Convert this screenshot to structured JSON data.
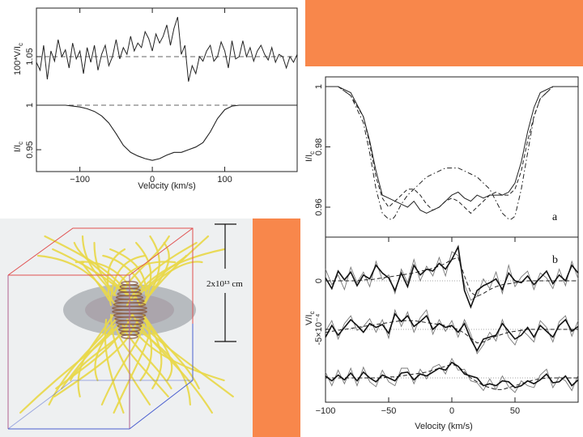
{
  "colors": {
    "accent": "#f8874b",
    "field_lines": "#e8d84a",
    "box_top": "#e05050",
    "box_bottom": "#4a5fd0",
    "disk": "#8a8f96"
  },
  "chart_data": [
    {
      "type": "line",
      "xlabel": "Velocity (km/s)",
      "xlim": [
        -160,
        200
      ],
      "xticks": [
        -100,
        0,
        100
      ],
      "upper": {
        "ylabel": "100*V/I_c",
        "ytick_labels": [
          "1.05"
        ],
        "baseline": 1.05,
        "x": [
          -160,
          -155,
          -150,
          -145,
          -140,
          -135,
          -130,
          -125,
          -120,
          -115,
          -110,
          -105,
          -100,
          -95,
          -90,
          -85,
          -80,
          -75,
          -70,
          -65,
          -60,
          -55,
          -50,
          -45,
          -40,
          -35,
          -30,
          -25,
          -20,
          -15,
          -10,
          -5,
          0,
          5,
          10,
          15,
          20,
          25,
          30,
          35,
          40,
          45,
          50,
          55,
          60,
          65,
          70,
          75,
          80,
          85,
          90,
          95,
          100,
          105,
          110,
          115,
          120,
          125,
          130,
          135,
          140,
          145,
          150,
          155,
          160,
          165,
          170,
          175,
          180,
          185,
          190,
          195,
          200
        ],
        "values": [
          1.045,
          1.038,
          1.06,
          1.03,
          1.055,
          1.046,
          1.065,
          1.05,
          1.056,
          1.04,
          1.062,
          1.048,
          1.055,
          1.035,
          1.058,
          1.045,
          1.06,
          1.038,
          1.052,
          1.06,
          1.042,
          1.05,
          1.065,
          1.048,
          1.058,
          1.052,
          1.068,
          1.055,
          1.062,
          1.058,
          1.072,
          1.066,
          1.055,
          1.07,
          1.062,
          1.068,
          1.078,
          1.06,
          1.075,
          1.085,
          1.052,
          1.06,
          1.028,
          1.042,
          1.035,
          1.05,
          1.046,
          1.055,
          1.06,
          1.046,
          1.05,
          1.063,
          1.055,
          1.04,
          1.064,
          1.048,
          1.05,
          1.064,
          1.05,
          1.058,
          1.046,
          1.055,
          1.06,
          1.052,
          1.047,
          1.058,
          1.045,
          1.052,
          1.05,
          1.04,
          1.05,
          1.045,
          1.052
        ]
      },
      "lower": {
        "ylabel": "I/I_c",
        "ytick_labels": [
          "1",
          "0.95"
        ],
        "continuum": 1.0,
        "x": [
          -160,
          -150,
          -140,
          -130,
          -120,
          -110,
          -100,
          -90,
          -80,
          -70,
          -60,
          -50,
          -40,
          -30,
          -20,
          -10,
          0,
          10,
          20,
          30,
          40,
          50,
          60,
          70,
          80,
          90,
          100,
          110,
          120,
          130,
          140,
          150,
          160,
          170,
          180,
          190,
          200
        ],
        "values": [
          1.0,
          1.0,
          1.0,
          1.0,
          1.0,
          0.999,
          0.998,
          0.996,
          0.993,
          0.988,
          0.98,
          0.968,
          0.955,
          0.947,
          0.943,
          0.94,
          0.938,
          0.94,
          0.944,
          0.947,
          0.947,
          0.95,
          0.953,
          0.958,
          0.97,
          0.985,
          0.995,
          0.999,
          1.0,
          1.0,
          1.0,
          1.0,
          1.0,
          1.0,
          1.0,
          1.0,
          1.0
        ]
      }
    },
    {
      "type": "line",
      "xlabel": "Velocity (km/s)",
      "xlim": [
        -100,
        100
      ],
      "xticks": [
        -100,
        -50,
        0,
        50
      ],
      "panel_a": {
        "label": "a",
        "ylabel": "I/I_c",
        "ytick_labels": [
          "1",
          "0.98",
          "0.96"
        ],
        "series": [
          {
            "style": "solid",
            "x": [
              -100,
              -90,
              -80,
              -70,
              -65,
              -60,
              -55,
              -50,
              -45,
              -40,
              -35,
              -30,
              -25,
              -20,
              -15,
              -10,
              -5,
              0,
              5,
              10,
              15,
              20,
              25,
              30,
              35,
              40,
              45,
              50,
              55,
              60,
              65,
              70,
              80,
              90,
              100
            ],
            "values": [
              1.0,
              1.0,
              0.998,
              0.99,
              0.982,
              0.972,
              0.964,
              0.963,
              0.962,
              0.961,
              0.96,
              0.962,
              0.959,
              0.958,
              0.959,
              0.96,
              0.962,
              0.964,
              0.965,
              0.963,
              0.962,
              0.964,
              0.963,
              0.964,
              0.964,
              0.964,
              0.965,
              0.968,
              0.975,
              0.985,
              0.993,
              0.998,
              1.0,
              1.0,
              1.0
            ]
          },
          {
            "style": "dashed",
            "x": [
              -100,
              -90,
              -80,
              -70,
              -65,
              -60,
              -55,
              -50,
              -45,
              -40,
              -35,
              -30,
              -25,
              -20,
              -15,
              -10,
              -5,
              0,
              5,
              10,
              15,
              20,
              25,
              30,
              35,
              40,
              45,
              50,
              55,
              60,
              65,
              70,
              80,
              90,
              100
            ],
            "values": [
              1.0,
              1.0,
              0.997,
              0.99,
              0.981,
              0.97,
              0.963,
              0.96,
              0.962,
              0.964,
              0.966,
              0.966,
              0.964,
              0.961,
              0.959,
              0.96,
              0.962,
              0.963,
              0.962,
              0.96,
              0.958,
              0.96,
              0.962,
              0.964,
              0.965,
              0.964,
              0.964,
              0.966,
              0.972,
              0.982,
              0.99,
              0.996,
              1.0,
              1.0,
              1.0
            ]
          },
          {
            "style": "dashdot",
            "x": [
              -100,
              -90,
              -80,
              -70,
              -65,
              -60,
              -55,
              -50,
              -47,
              -45,
              -40,
              -35,
              -30,
              -25,
              -20,
              -15,
              -10,
              -5,
              0,
              5,
              10,
              15,
              20,
              25,
              30,
              35,
              40,
              45,
              47,
              50,
              55,
              60,
              65,
              70,
              80,
              90,
              100
            ],
            "values": [
              1.0,
              1.0,
              0.997,
              0.988,
              0.978,
              0.966,
              0.958,
              0.956,
              0.956,
              0.957,
              0.961,
              0.964,
              0.966,
              0.968,
              0.97,
              0.971,
              0.972,
              0.973,
              0.973,
              0.973,
              0.972,
              0.971,
              0.97,
              0.968,
              0.966,
              0.962,
              0.958,
              0.956,
              0.956,
              0.957,
              0.966,
              0.978,
              0.99,
              0.996,
              1.0,
              1.0,
              1.0
            ]
          }
        ]
      },
      "panel_b": {
        "label": "b",
        "ylabel": "V/I_c",
        "ytick_labels": [
          "0",
          "-5×10⁻⁴"
        ],
        "offsets": [
          0,
          -5,
          -10
        ],
        "x": [
          -100,
          -95,
          -90,
          -85,
          -80,
          -75,
          -70,
          -65,
          -60,
          -55,
          -50,
          -45,
          -40,
          -35,
          -30,
          -25,
          -20,
          -15,
          -10,
          -5,
          0,
          5,
          10,
          15,
          20,
          25,
          30,
          35,
          40,
          45,
          50,
          55,
          60,
          65,
          70,
          75,
          80,
          85,
          90,
          95,
          100
        ],
        "traces": [
          {
            "offset": 0,
            "thick": [
              0.3,
              -0.8,
              1.0,
              0.1,
              0.9,
              -0.5,
              0.6,
              0.2,
              1.6,
              0.8,
              0.3,
              -1.0,
              0.8,
              -0.6,
              1.6,
              0.6,
              1.2,
              1.0,
              1.8,
              1.2,
              2.2,
              3.5,
              -1.0,
              -2.7,
              -1.0,
              -0.5,
              -0.2,
              0.2,
              -0.9,
              0.8,
              0.0,
              -0.2,
              0.5,
              -0.4,
              0.3,
              1.0,
              -0.3,
              0.6,
              0.0,
              1.6,
              0.8
            ],
            "thin": [
              1.2,
              -0.4,
              0.6,
              -0.9,
              1.4,
              -0.2,
              0.9,
              -0.6,
              2.0,
              0.1,
              0.6,
              -1.3,
              1.2,
              -0.2,
              2.2,
              0.0,
              1.5,
              0.5,
              2.4,
              0.5,
              3.0,
              2.6,
              -0.4,
              -2.0,
              -1.6,
              0.2,
              -0.8,
              0.9,
              -1.3,
              1.6,
              -0.6,
              0.4,
              1.0,
              -0.9,
              0.8,
              0.3,
              -0.8,
              1.2,
              -0.5,
              2.0,
              0.2
            ],
            "model": [
              0.0,
              0.0,
              0.0,
              0.0,
              0.0,
              0.0,
              0.1,
              0.1,
              0.2,
              0.3,
              0.4,
              0.5,
              0.6,
              0.7,
              0.8,
              1.0,
              1.1,
              1.3,
              1.5,
              1.8,
              2.2,
              2.4,
              0.5,
              -1.2,
              -1.6,
              -1.3,
              -0.9,
              -0.6,
              -0.4,
              -0.3,
              -0.2,
              -0.1,
              0.0,
              0.0,
              0.0,
              0.0,
              0.0,
              0.0,
              0.0,
              0.0,
              0.0
            ]
          },
          {
            "offset": -5,
            "thick": [
              -0.8,
              0.4,
              -0.6,
              0.2,
              1.0,
              0.4,
              -0.3,
              0.6,
              0.2,
              0.5,
              -0.4,
              1.6,
              0.8,
              1.4,
              0.3,
              0.8,
              1.4,
              0.0,
              0.6,
              0.2,
              0.4,
              -0.3,
              0.6,
              -1.0,
              -2.2,
              -1.0,
              -0.8,
              -0.6,
              0.6,
              -0.2,
              -1.0,
              -0.6,
              0.2,
              -0.8,
              0.4,
              -0.2,
              -0.8,
              0.4,
              1.0,
              -0.2,
              0.3
            ],
            "thin": [
              -0.2,
              0.9,
              -1.0,
              0.6,
              1.4,
              -0.1,
              0.3,
              1.1,
              -0.3,
              1.0,
              -0.9,
              2.0,
              0.3,
              1.8,
              -0.3,
              1.2,
              2.0,
              -0.5,
              1.0,
              -0.2,
              0.9,
              -0.8,
              1.0,
              -0.5,
              -2.5,
              -1.6,
              -0.3,
              -1.2,
              1.0,
              -0.8,
              -1.6,
              0.0,
              -0.6,
              -1.3,
              0.9,
              0.2,
              -1.3,
              0.8,
              1.4,
              -0.7,
              0.9
            ],
            "model": [
              -0.3,
              -0.2,
              -0.1,
              0.0,
              0.1,
              0.2,
              0.3,
              0.4,
              0.5,
              0.6,
              0.7,
              0.8,
              0.9,
              0.9,
              0.9,
              0.8,
              0.7,
              0.6,
              0.5,
              0.4,
              0.2,
              0.0,
              -0.4,
              -0.9,
              -1.4,
              -1.3,
              -1.0,
              -0.7,
              -0.5,
              -0.3,
              -0.2,
              -0.1,
              0.0,
              0.0,
              0.0,
              0.0,
              0.0,
              0.0,
              0.0,
              0.0,
              0.0
            ]
          },
          {
            "offset": -10,
            "thick": [
              0.2,
              -0.3,
              0.3,
              -0.2,
              0.5,
              -0.3,
              0.6,
              0.0,
              -0.4,
              0.3,
              0.0,
              -0.3,
              0.5,
              0.6,
              -0.2,
              0.4,
              0.2,
              0.6,
              1.0,
              0.8,
              1.6,
              1.2,
              0.4,
              0.2,
              0.0,
              -0.8,
              -0.6,
              -0.8,
              -0.3,
              -0.4,
              -1.0,
              -0.8,
              -0.3,
              -0.6,
              -0.2,
              0.4,
              -0.5,
              -0.4,
              0.2,
              -0.8,
              -0.2
            ],
            "thin": [
              0.6,
              -0.8,
              0.8,
              -0.6,
              1.0,
              -0.8,
              1.1,
              -0.4,
              -0.9,
              0.8,
              -0.4,
              -0.8,
              1.0,
              1.0,
              -0.6,
              0.9,
              -0.1,
              1.1,
              1.4,
              0.4,
              2.0,
              0.8,
              0.9,
              -0.3,
              -0.5,
              -1.3,
              -0.1,
              -1.2,
              0.2,
              -0.9,
              -1.5,
              -0.3,
              -0.8,
              -1.0,
              0.3,
              0.9,
              -1.0,
              0.1,
              -0.3,
              -1.3,
              0.3
            ],
            "model": [
              0.0,
              0.0,
              0.0,
              0.0,
              0.0,
              0.0,
              0.0,
              0.0,
              0.0,
              0.0,
              0.1,
              0.1,
              0.2,
              0.3,
              0.4,
              0.5,
              0.6,
              0.8,
              1.0,
              1.2,
              1.4,
              1.2,
              0.6,
              0.0,
              -0.4,
              -0.8,
              -1.0,
              -1.2,
              -1.2,
              -1.0,
              -0.8,
              -0.6,
              -0.4,
              -0.2,
              -0.1,
              0.0,
              0.0,
              0.0,
              0.0,
              0.0,
              0.0
            ]
          }
        ]
      }
    }
  ],
  "illustration": {
    "scale_label": "2x10¹³ cm"
  }
}
